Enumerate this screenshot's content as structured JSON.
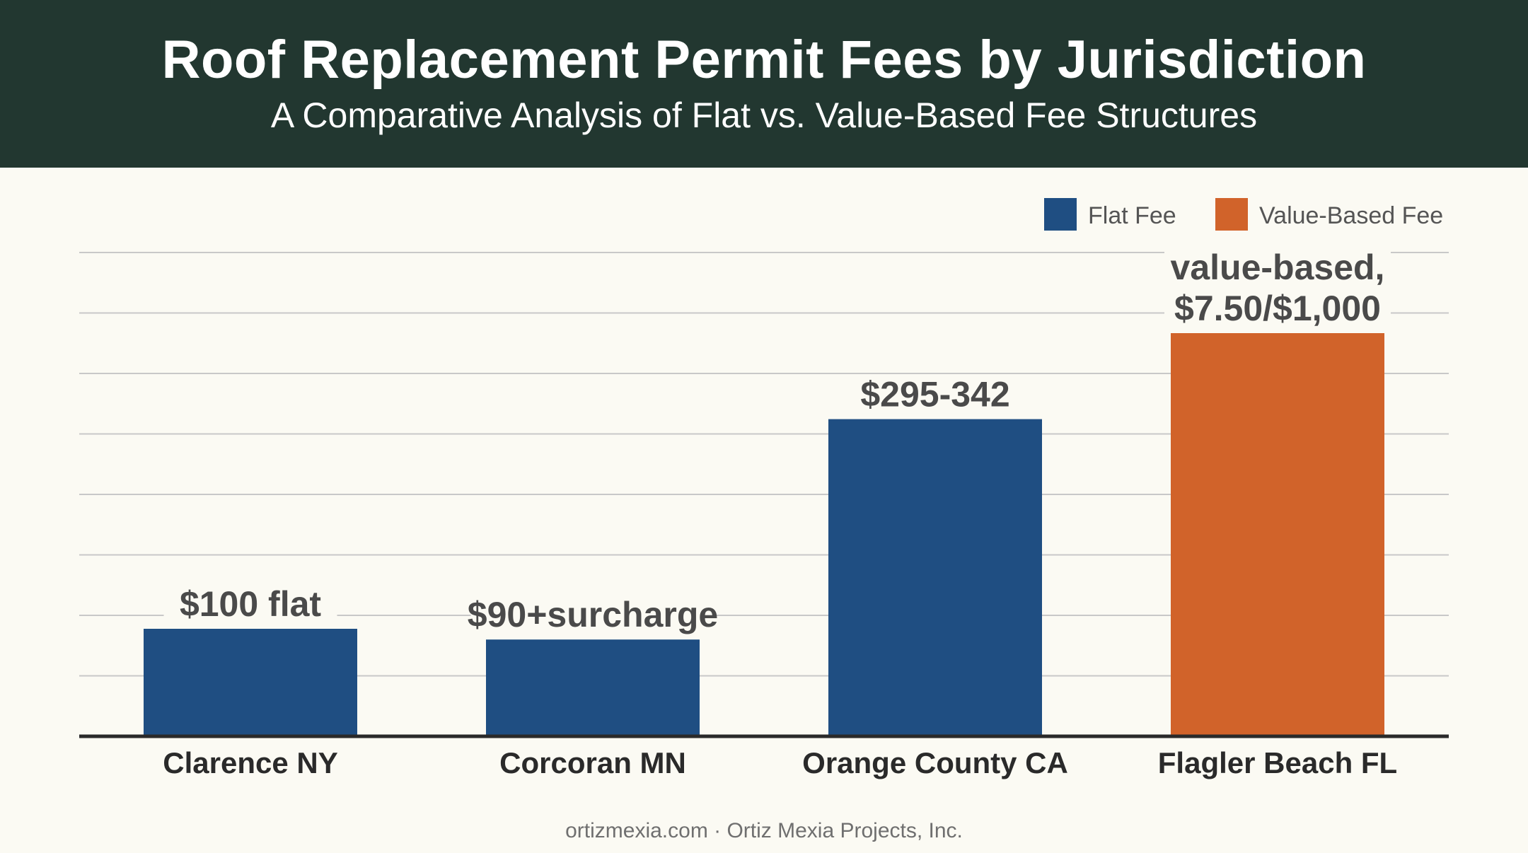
{
  "header": {
    "title": "Roof Replacement Permit Fees by Jurisdiction",
    "subtitle": "A Comparative Analysis of Flat vs. Value-Based Fee Structures"
  },
  "footer": {
    "text": "ortizmexia.com · Ortiz Mexia Projects, Inc."
  },
  "colors": {
    "flat": "#1f4e82",
    "value_based": "#d1632a",
    "header_bg": "#223730",
    "grid": "#c8c8c8",
    "axis": "#2a2a2a"
  },
  "chart_data": {
    "type": "bar",
    "title": "Roof Replacement Permit Fees by Jurisdiction",
    "subtitle": "A Comparative Analysis of Flat vs. Value-Based Fee Structures",
    "xlabel": "",
    "ylabel": "",
    "grid": true,
    "legend_position": "top-right",
    "categories": [
      "Clarence NY",
      "Corcoran MN",
      "Orange County CA",
      "Flagler Beach FL"
    ],
    "values": [
      100,
      90,
      295,
      375
    ],
    "ylim": [
      0,
      450
    ],
    "gridlines": 8,
    "series_types": [
      "flat",
      "flat",
      "flat",
      "value_based"
    ],
    "data_labels": [
      [
        "$100 flat"
      ],
      [
        "$90+surcharge"
      ],
      [
        "$295-342"
      ],
      [
        "value-based,",
        "$7.50/$1,000"
      ]
    ],
    "legend": [
      {
        "key": "flat",
        "label": "Flat Fee"
      },
      {
        "key": "value_based",
        "label": "Value-Based Fee"
      }
    ]
  }
}
